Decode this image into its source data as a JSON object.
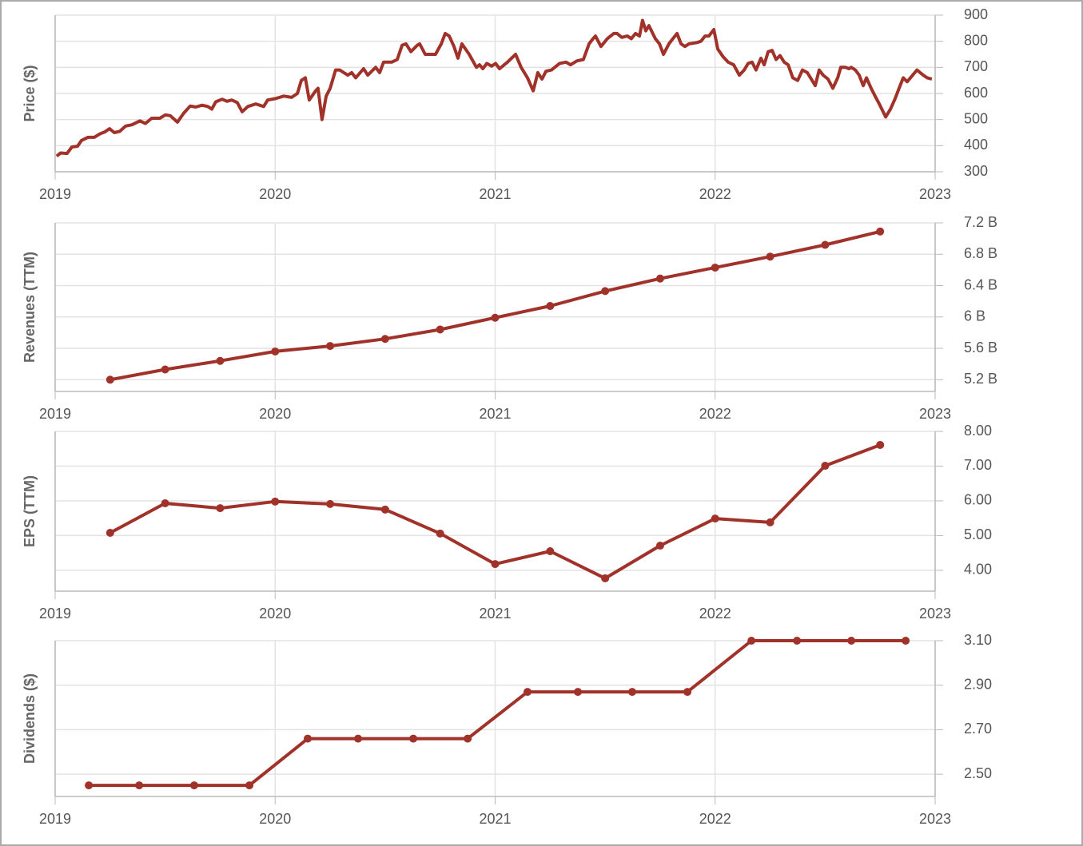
{
  "chart_data": [
    {
      "type": "line",
      "y_label": "Price ($)",
      "xlim": [
        2019,
        2023
      ],
      "xticks": [
        2019,
        2020,
        2021,
        2022,
        2023
      ],
      "ylim": [
        300,
        900
      ],
      "yticks": [
        900,
        800,
        700,
        600,
        500,
        400,
        300
      ],
      "grid": true,
      "markers": false,
      "series": [
        {
          "color": "#a0322a",
          "x": [
            2019.007,
            2019.025,
            2019.054,
            2019.076,
            2019.102,
            2019.12,
            2019.149,
            2019.178,
            2019.203,
            2019.225,
            2019.247,
            2019.269,
            2019.294,
            2019.32,
            2019.349,
            2019.385,
            2019.41,
            2019.439,
            2019.476,
            2019.501,
            2019.523,
            2019.556,
            2019.585,
            2019.614,
            2019.639,
            2019.668,
            2019.694,
            2019.712,
            2019.73,
            2019.759,
            2019.781,
            2019.803,
            2019.828,
            2019.85,
            2019.876,
            2019.912,
            2019.948,
            2019.966,
            2020.0,
            2020.039,
            2020.075,
            2020.101,
            2020.119,
            2020.137,
            2020.155,
            2020.184,
            2020.195,
            2020.213,
            2020.232,
            2020.25,
            2020.275,
            2020.293,
            2020.33,
            2020.348,
            2020.366,
            2020.402,
            2020.421,
            2020.457,
            2020.475,
            2020.493,
            2020.53,
            2020.555,
            2020.577,
            2020.595,
            2020.617,
            2020.646,
            2020.657,
            2020.682,
            2020.729,
            2020.755,
            2020.773,
            2020.791,
            2020.813,
            2020.831,
            2020.849,
            2020.882,
            2020.915,
            2020.929,
            2020.944,
            2020.962,
            2020.984,
            2021.002,
            2021.02,
            2021.056,
            2021.093,
            2021.118,
            2021.147,
            2021.173,
            2021.194,
            2021.213,
            2021.231,
            2021.256,
            2021.293,
            2021.322,
            2021.343,
            2021.372,
            2021.401,
            2021.427,
            2021.445,
            2021.456,
            2021.481,
            2021.51,
            2021.539,
            2021.554,
            2021.576,
            2021.601,
            2021.619,
            2021.638,
            2021.656,
            2021.67,
            2021.685,
            2021.699,
            2021.728,
            2021.747,
            2021.765,
            2021.79,
            2021.808,
            2021.827,
            2021.845,
            2021.863,
            2021.881,
            2021.917,
            2021.935,
            2021.954,
            2021.972,
            2021.994,
            2022.012,
            2022.037,
            2022.059,
            2022.084,
            2022.11,
            2022.132,
            2022.15,
            2022.168,
            2022.186,
            2022.208,
            2022.223,
            2022.241,
            2022.259,
            2022.277,
            2022.295,
            2022.314,
            2022.332,
            2022.353,
            2022.375,
            2022.397,
            2022.419,
            2022.441,
            2022.455,
            2022.473,
            2022.491,
            2022.513,
            2022.535,
            2022.557,
            2022.571,
            2022.593,
            2022.608,
            2022.619,
            2022.637,
            2022.655,
            2022.673,
            2022.688,
            2022.709,
            2022.727,
            2022.746,
            2022.775,
            2022.797,
            2022.818,
            2022.836,
            2022.855,
            2022.873,
            2022.898,
            2022.917,
            2022.946,
            2022.964,
            2022.985
          ],
          "values": [
            360,
            372,
            370,
            395,
            398,
            420,
            432,
            432,
            445,
            452,
            465,
            450,
            455,
            475,
            480,
            495,
            485,
            505,
            505,
            518,
            515,
            490,
            525,
            552,
            548,
            555,
            550,
            540,
            568,
            578,
            570,
            575,
            565,
            530,
            550,
            560,
            550,
            575,
            580,
            590,
            585,
            600,
            650,
            660,
            575,
            610,
            620,
            500,
            590,
            620,
            690,
            690,
            670,
            680,
            660,
            695,
            670,
            700,
            680,
            720,
            720,
            730,
            785,
            790,
            760,
            785,
            790,
            750,
            750,
            790,
            830,
            820,
            780,
            735,
            790,
            750,
            700,
            710,
            695,
            715,
            705,
            715,
            695,
            720,
            750,
            700,
            660,
            610,
            680,
            655,
            685,
            690,
            715,
            720,
            710,
            725,
            730,
            790,
            810,
            820,
            780,
            810,
            830,
            830,
            815,
            820,
            810,
            830,
            820,
            880,
            840,
            860,
            810,
            790,
            750,
            790,
            810,
            830,
            790,
            780,
            790,
            795,
            800,
            820,
            820,
            845,
            770,
            740,
            720,
            710,
            670,
            690,
            715,
            720,
            690,
            735,
            710,
            760,
            765,
            730,
            745,
            720,
            710,
            660,
            650,
            690,
            680,
            650,
            630,
            690,
            670,
            655,
            620,
            660,
            700,
            700,
            695,
            700,
            690,
            670,
            630,
            660,
            620,
            590,
            560,
            510,
            540,
            580,
            620,
            660,
            645,
            670,
            690,
            670,
            660,
            655
          ]
        }
      ]
    },
    {
      "type": "line",
      "y_label": "Revenues (TTM)",
      "xlim": [
        2019,
        2023
      ],
      "xticks": [
        2019,
        2020,
        2021,
        2022,
        2023
      ],
      "ylim": [
        5.05,
        7.2
      ],
      "yticks": [
        {
          "value": 7.2,
          "label": "7.2 B"
        },
        {
          "value": 6.8,
          "label": "6.8 B"
        },
        {
          "value": 6.4,
          "label": "6.4 B"
        },
        {
          "value": 6,
          "label": "6 B"
        },
        {
          "value": 5.6,
          "label": "5.6 B"
        },
        {
          "value": 5.2,
          "label": "5.2 B"
        }
      ],
      "grid": true,
      "markers": true,
      "series": [
        {
          "color": "#a0322a",
          "x": [
            2019.25,
            2019.5,
            2019.75,
            2020.0,
            2020.25,
            2020.5,
            2020.75,
            2021.0,
            2021.25,
            2021.5,
            2021.75,
            2022.0,
            2022.25,
            2022.5,
            2022.75
          ],
          "values": [
            5.2,
            5.33,
            5.44,
            5.56,
            5.63,
            5.72,
            5.84,
            5.99,
            6.14,
            6.33,
            6.49,
            6.63,
            6.77,
            6.92,
            7.09
          ]
        }
      ]
    },
    {
      "type": "line",
      "y_label": "EPS (TTM)",
      "xlim": [
        2019,
        2023
      ],
      "xticks": [
        2019,
        2020,
        2021,
        2022,
        2023
      ],
      "ylim": [
        3.4,
        8
      ],
      "yticks": [
        {
          "value": 8,
          "label": "8.00"
        },
        {
          "value": 7,
          "label": "7.00"
        },
        {
          "value": 6,
          "label": "6.00"
        },
        {
          "value": 5,
          "label": "5.00"
        },
        {
          "value": 4,
          "label": "4.00"
        }
      ],
      "grid": true,
      "markers": true,
      "series": [
        {
          "color": "#a0322a",
          "x": [
            2019.25,
            2019.5,
            2019.75,
            2020.0,
            2020.25,
            2020.5,
            2020.75,
            2021.0,
            2021.25,
            2021.5,
            2021.75,
            2022.0,
            2022.25,
            2022.5,
            2022.75
          ],
          "values": [
            5.08,
            5.93,
            5.79,
            5.98,
            5.91,
            5.75,
            5.06,
            4.18,
            4.55,
            3.77,
            4.71,
            5.49,
            5.38,
            7.01,
            7.61
          ]
        }
      ]
    },
    {
      "type": "line",
      "y_label": "Dividends ($)",
      "xlim": [
        2019,
        2023
      ],
      "xticks": [
        2019,
        2020,
        2021,
        2022,
        2023
      ],
      "ylim": [
        2.4,
        3.1
      ],
      "yticks": [
        {
          "value": 3.1,
          "label": "3.10"
        },
        {
          "value": 2.9,
          "label": "2.90"
        },
        {
          "value": 2.7,
          "label": "2.70"
        },
        {
          "value": 2.5,
          "label": "2.50"
        }
      ],
      "grid": true,
      "markers": true,
      "series": [
        {
          "color": "#a0322a",
          "x": [
            2019.153,
            2019.382,
            2019.632,
            2019.883,
            2020.148,
            2020.377,
            2020.628,
            2020.875,
            2021.147,
            2021.376,
            2021.623,
            2021.874,
            2022.165,
            2022.372,
            2022.619,
            2022.866
          ],
          "values": [
            2.45,
            2.45,
            2.45,
            2.45,
            2.66,
            2.66,
            2.66,
            2.66,
            2.87,
            2.87,
            2.87,
            2.87,
            3.1,
            3.1,
            3.1,
            3.1
          ]
        }
      ]
    }
  ]
}
